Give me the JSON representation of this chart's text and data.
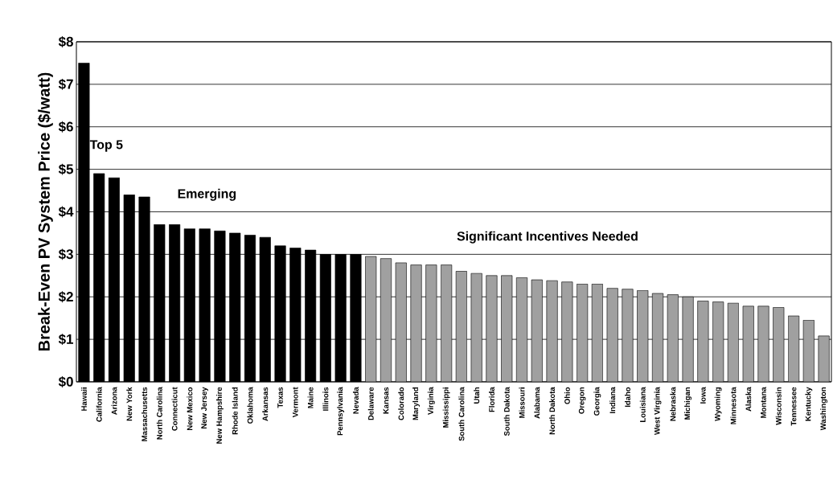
{
  "chart_data": {
    "type": "bar",
    "ylabel": "Break-Even PV System Price ($/watt)",
    "categories": [
      "Hawaii",
      "California",
      "Arizona",
      "New York",
      "Massachusetts",
      "North Carolina",
      "Connecticut",
      "New Mexico",
      "New Jersey",
      "New Hampshire",
      "Rhode Island",
      "Oklahoma",
      "Arkansas",
      "Texas",
      "Vermont",
      "Maine",
      "Illinois",
      "Pennsylvania",
      "Nevada",
      "Delaware",
      "Kansas",
      "Colorado",
      "Maryland",
      "Virginia",
      "Mississippi",
      "South Carolina",
      "Utah",
      "Florida",
      "South Dakota",
      "Missouri",
      "Alabama",
      "North Dakota",
      "Ohio",
      "Oregon",
      "Georgia",
      "Indiana",
      "Idaho",
      "Louisiana",
      "West Virginia",
      "Nebraska",
      "Michigan",
      "Iowa",
      "Wyoming",
      "Minnesota",
      "Alaska",
      "Montana",
      "Wisconsin",
      "Tennessee",
      "Kentucky",
      "Washington"
    ],
    "values": [
      7.5,
      4.9,
      4.8,
      4.4,
      4.35,
      3.7,
      3.7,
      3.6,
      3.6,
      3.55,
      3.5,
      3.45,
      3.4,
      3.2,
      3.15,
      3.1,
      3.0,
      3.0,
      3.0,
      2.95,
      2.9,
      2.8,
      2.75,
      2.75,
      2.75,
      2.6,
      2.55,
      2.5,
      2.5,
      2.45,
      2.4,
      2.38,
      2.35,
      2.3,
      2.3,
      2.2,
      2.18,
      2.15,
      2.08,
      2.05,
      2.0,
      1.9,
      1.88,
      1.85,
      1.78,
      1.78,
      1.75,
      1.55,
      1.45,
      1.08
    ],
    "colors": [
      "#000000",
      "#000000",
      "#000000",
      "#000000",
      "#000000",
      "#000000",
      "#000000",
      "#000000",
      "#000000",
      "#000000",
      "#000000",
      "#000000",
      "#000000",
      "#000000",
      "#000000",
      "#000000",
      "#000000",
      "#000000",
      "#000000",
      "#a0a0a0",
      "#a0a0a0",
      "#a0a0a0",
      "#a0a0a0",
      "#a0a0a0",
      "#a0a0a0",
      "#a0a0a0",
      "#a0a0a0",
      "#a0a0a0",
      "#a0a0a0",
      "#a0a0a0",
      "#a0a0a0",
      "#a0a0a0",
      "#a0a0a0",
      "#a0a0a0",
      "#a0a0a0",
      "#a0a0a0",
      "#a0a0a0",
      "#a0a0a0",
      "#a0a0a0",
      "#a0a0a0",
      "#a0a0a0",
      "#a0a0a0",
      "#a0a0a0",
      "#a0a0a0",
      "#a0a0a0",
      "#a0a0a0",
      "#a0a0a0",
      "#a0a0a0",
      "#a0a0a0",
      "#a0a0a0"
    ],
    "ylim": [
      0,
      8
    ],
    "yticks": [
      {
        "value": 0,
        "label": "$0"
      },
      {
        "value": 1,
        "label": "$1"
      },
      {
        "value": 2,
        "label": "$2"
      },
      {
        "value": 3,
        "label": "$3"
      },
      {
        "value": 4,
        "label": "$4"
      },
      {
        "value": 5,
        "label": "$5"
      },
      {
        "value": 6,
        "label": "$6"
      },
      {
        "value": 7,
        "label": "$7"
      },
      {
        "value": 8,
        "label": "$8"
      }
    ],
    "grid": "y",
    "annotations": [
      "Top 5",
      "Emerging",
      "Significant Incentives Needed"
    ]
  }
}
